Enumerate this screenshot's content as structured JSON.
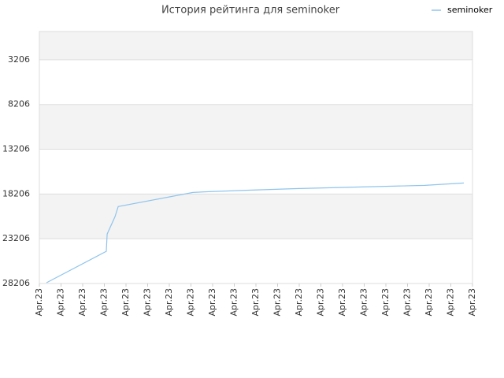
{
  "chart_data": {
    "type": "line",
    "title": "История рейтинга для seminoker",
    "x": [
      0.33,
      3.09,
      3.13,
      3.49,
      3.64,
      7.09,
      7.82,
      9.82,
      12.0,
      14.9,
      17.8,
      19.6
    ],
    "series": [
      {
        "name": "seminoker",
        "color": "#90c4ec",
        "values": [
          28118,
          24610,
          22680,
          20750,
          19609,
          18030,
          17940,
          17767,
          17592,
          17416,
          17241,
          16978
        ]
      }
    ],
    "xlim": [
      0,
      20
    ],
    "xticks": [
      {
        "value": 0,
        "label": "Apr.23"
      },
      {
        "value": 1,
        "label": "Apr.23"
      },
      {
        "value": 2,
        "label": "Apr.23"
      },
      {
        "value": 3,
        "label": "Apr.23"
      },
      {
        "value": 4,
        "label": "Apr.23"
      },
      {
        "value": 5,
        "label": "Apr.23"
      },
      {
        "value": 6,
        "label": "Apr.23"
      },
      {
        "value": 7,
        "label": "Apr.23"
      },
      {
        "value": 8,
        "label": "Apr.23"
      },
      {
        "value": 9,
        "label": "Apr.23"
      },
      {
        "value": 10,
        "label": "Apr.23"
      },
      {
        "value": 11,
        "label": "Apr.23"
      },
      {
        "value": 12,
        "label": "Apr.23"
      },
      {
        "value": 13,
        "label": "Apr.23"
      },
      {
        "value": 14,
        "label": "Apr.23"
      },
      {
        "value": 15,
        "label": "Apr.23"
      },
      {
        "value": 16,
        "label": "Apr.23"
      },
      {
        "value": 17,
        "label": "Apr.23"
      },
      {
        "value": 18,
        "label": "Apr.23"
      },
      {
        "value": 19,
        "label": "Apr.23"
      },
      {
        "value": 20,
        "label": "Apr.23"
      }
    ],
    "ylim": [
      28206,
      46
    ],
    "yticks": [
      28206,
      23206,
      18206,
      13206,
      8206,
      3206
    ],
    "grid": true,
    "legend": "top-right"
  }
}
